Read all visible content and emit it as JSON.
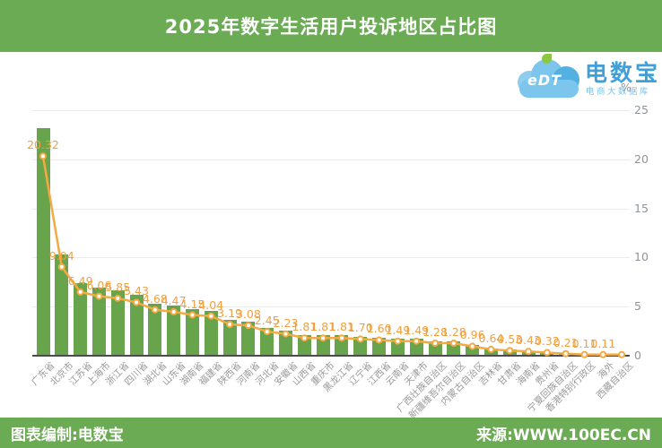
{
  "header": {
    "title": "2025年数字生活用户投诉地区占比图"
  },
  "logo": {
    "cloud_text": "eDT",
    "brand": "电数宝",
    "subtitle": "电商大数据库"
  },
  "axis": {
    "unit": "%",
    "ticks": [
      0,
      5,
      10,
      15,
      20,
      25
    ]
  },
  "chart_data": {
    "type": "bar",
    "title": "2025年数字生活用户投诉地区占比图",
    "xlabel": "",
    "ylabel": "%",
    "ylim": [
      0,
      25
    ],
    "grid": true,
    "legend_position": "none",
    "overlay_line_series": true,
    "categories": [
      "广东省",
      "北京市",
      "江苏省",
      "上海市",
      "浙江省",
      "四川省",
      "湖北省",
      "山东省",
      "湖南省",
      "福建省",
      "陕西省",
      "河南省",
      "河北省",
      "安徽省",
      "山西省",
      "重庆市",
      "黑龙江省",
      "辽宁省",
      "江西省",
      "云南省",
      "天津市",
      "广西壮族自治区",
      "新疆维吾尔自治区",
      "内蒙古自治区",
      "吉林省",
      "甘肃省",
      "海南省",
      "贵州省",
      "宁夏回族自治区",
      "香港特别行政区",
      "海外",
      "西藏自治区"
    ],
    "values": [
      20.32,
      9.04,
      6.49,
      6.06,
      5.85,
      5.43,
      4.68,
      4.47,
      4.15,
      4.04,
      3.19,
      3.08,
      2.45,
      2.23,
      1.81,
      1.81,
      1.81,
      1.7,
      1.6,
      1.49,
      1.49,
      1.28,
      1.28,
      0.96,
      0.64,
      0.53,
      0.43,
      0.32,
      0.21,
      0.11,
      0.11,
      0.11
    ],
    "point_labels": [
      "20.32",
      "9.04",
      "6.49",
      "6.06",
      "5.85",
      "5.43",
      "4.68",
      "4.47",
      "4.15",
      "4.04",
      "3.19",
      "3.08",
      "2.45",
      "2.23",
      "1.81",
      "1.81",
      "1.81",
      "1.70",
      "1.60",
      "1.49",
      "1.49",
      "1.28",
      "1.28",
      "0.96",
      "0.64",
      "0.53",
      "0.43",
      "0.32",
      "0.21",
      "0.11",
      "0.11",
      ""
    ]
  },
  "footer": {
    "left": "图表编制:电数宝",
    "right": "来源:WWW.100EC.CN"
  },
  "colors": {
    "band_green": "#6bab53",
    "bar_green": "#68a44b",
    "line_orange": "#f5a942",
    "label_orange": "#f2a03e",
    "axis_text": "#8f939a",
    "x_text": "#999999",
    "grid": "#ebebeb",
    "axis_line": "#4c4c4c",
    "logo_blue": "#3f9fd9",
    "logo_light_blue": "#7cc5ec",
    "logo_green": "#8dc63f"
  }
}
